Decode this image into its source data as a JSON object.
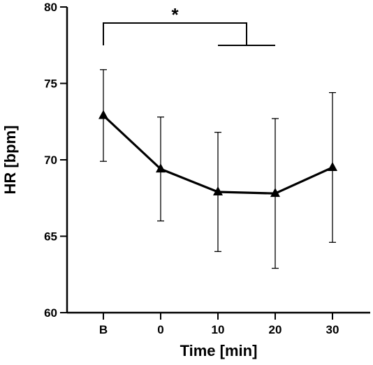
{
  "chart_data": {
    "type": "line",
    "title": "",
    "xlabel": "Time [min]",
    "ylabel": "HR [bpm]",
    "categories": [
      "B",
      "0",
      "10",
      "20",
      "30"
    ],
    "ylim": [
      60,
      80
    ],
    "yticks": [
      "60",
      "65",
      "70",
      "75",
      "80"
    ],
    "grid": false,
    "series": [
      {
        "values": [
          72.9,
          69.4,
          67.9,
          67.8,
          69.5
        ],
        "error": [
          3.0,
          3.4,
          3.9,
          4.9,
          4.9
        ]
      }
    ],
    "annotation": {
      "text": "*",
      "from": "B",
      "to_range": [
        "10",
        "20"
      ]
    },
    "colors": {
      "line": "#000000",
      "background": "#ffffff"
    }
  }
}
